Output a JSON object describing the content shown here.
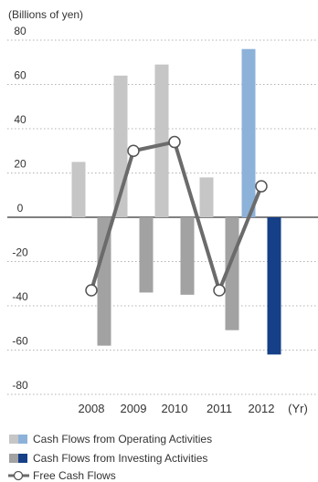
{
  "chart_data": {
    "type": "bar",
    "unit_label": "(Billions of yen)",
    "x_unit": "(Yr)",
    "categories": [
      "2008",
      "2009",
      "2010",
      "2011",
      "2012"
    ],
    "ylim": [
      -80,
      80
    ],
    "yticks": [
      80,
      60,
      40,
      20,
      0,
      -20,
      -40,
      -60,
      -80
    ],
    "ytick_labels": [
      "80",
      "60",
      "40",
      "20",
      "0",
      "-20",
      "-40",
      "-60",
      "-80"
    ],
    "grid": "dotted horizontal",
    "series": [
      {
        "name": "Cash Flows from Operating Activities",
        "kind": "bar",
        "values": [
          25,
          64,
          69,
          18,
          76
        ],
        "color": "#c6c6c6",
        "highlight_color": "#8db2d9"
      },
      {
        "name": "Cash Flows from Investing Activities",
        "kind": "bar",
        "values": [
          -58,
          -34,
          -35,
          -51,
          -62
        ],
        "color": "#a2a2a2",
        "highlight_color": "#153f86"
      },
      {
        "name": "Free Cash Flows",
        "kind": "line",
        "values": [
          -33,
          30,
          34,
          -33,
          14
        ],
        "color": "#6b6b6b"
      }
    ],
    "highlight_category": "2012",
    "legend_position": "bottom-left"
  }
}
